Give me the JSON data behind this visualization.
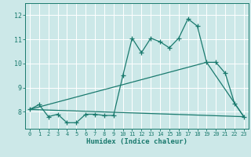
{
  "title": "",
  "xlabel": "Humidex (Indice chaleur)",
  "ylabel": "",
  "bg_color": "#cce8e8",
  "line_color": "#1a7a6e",
  "grid_color": "#ffffff",
  "xlim": [
    -0.5,
    23.5
  ],
  "ylim": [
    7.3,
    12.5
  ],
  "yticks": [
    8,
    9,
    10,
    11,
    12
  ],
  "xticks": [
    0,
    1,
    2,
    3,
    4,
    5,
    6,
    7,
    8,
    9,
    10,
    11,
    12,
    13,
    14,
    15,
    16,
    17,
    18,
    19,
    20,
    21,
    22,
    23
  ],
  "series1_x": [
    0,
    1,
    2,
    3,
    4,
    5,
    6,
    7,
    8,
    9,
    10,
    11,
    12,
    13,
    14,
    15,
    16,
    17,
    18,
    19,
    20,
    21,
    22,
    23
  ],
  "series1_y": [
    8.1,
    8.3,
    7.8,
    7.9,
    7.55,
    7.55,
    7.9,
    7.9,
    7.85,
    7.85,
    9.5,
    11.05,
    10.45,
    11.05,
    10.9,
    10.65,
    11.05,
    11.85,
    11.55,
    10.05,
    10.05,
    9.6,
    8.35,
    7.8
  ],
  "series2_x": [
    0,
    23
  ],
  "series2_y": [
    8.1,
    7.8
  ],
  "series3_x": [
    0,
    19,
    23
  ],
  "series3_y": [
    8.1,
    10.05,
    7.8
  ]
}
